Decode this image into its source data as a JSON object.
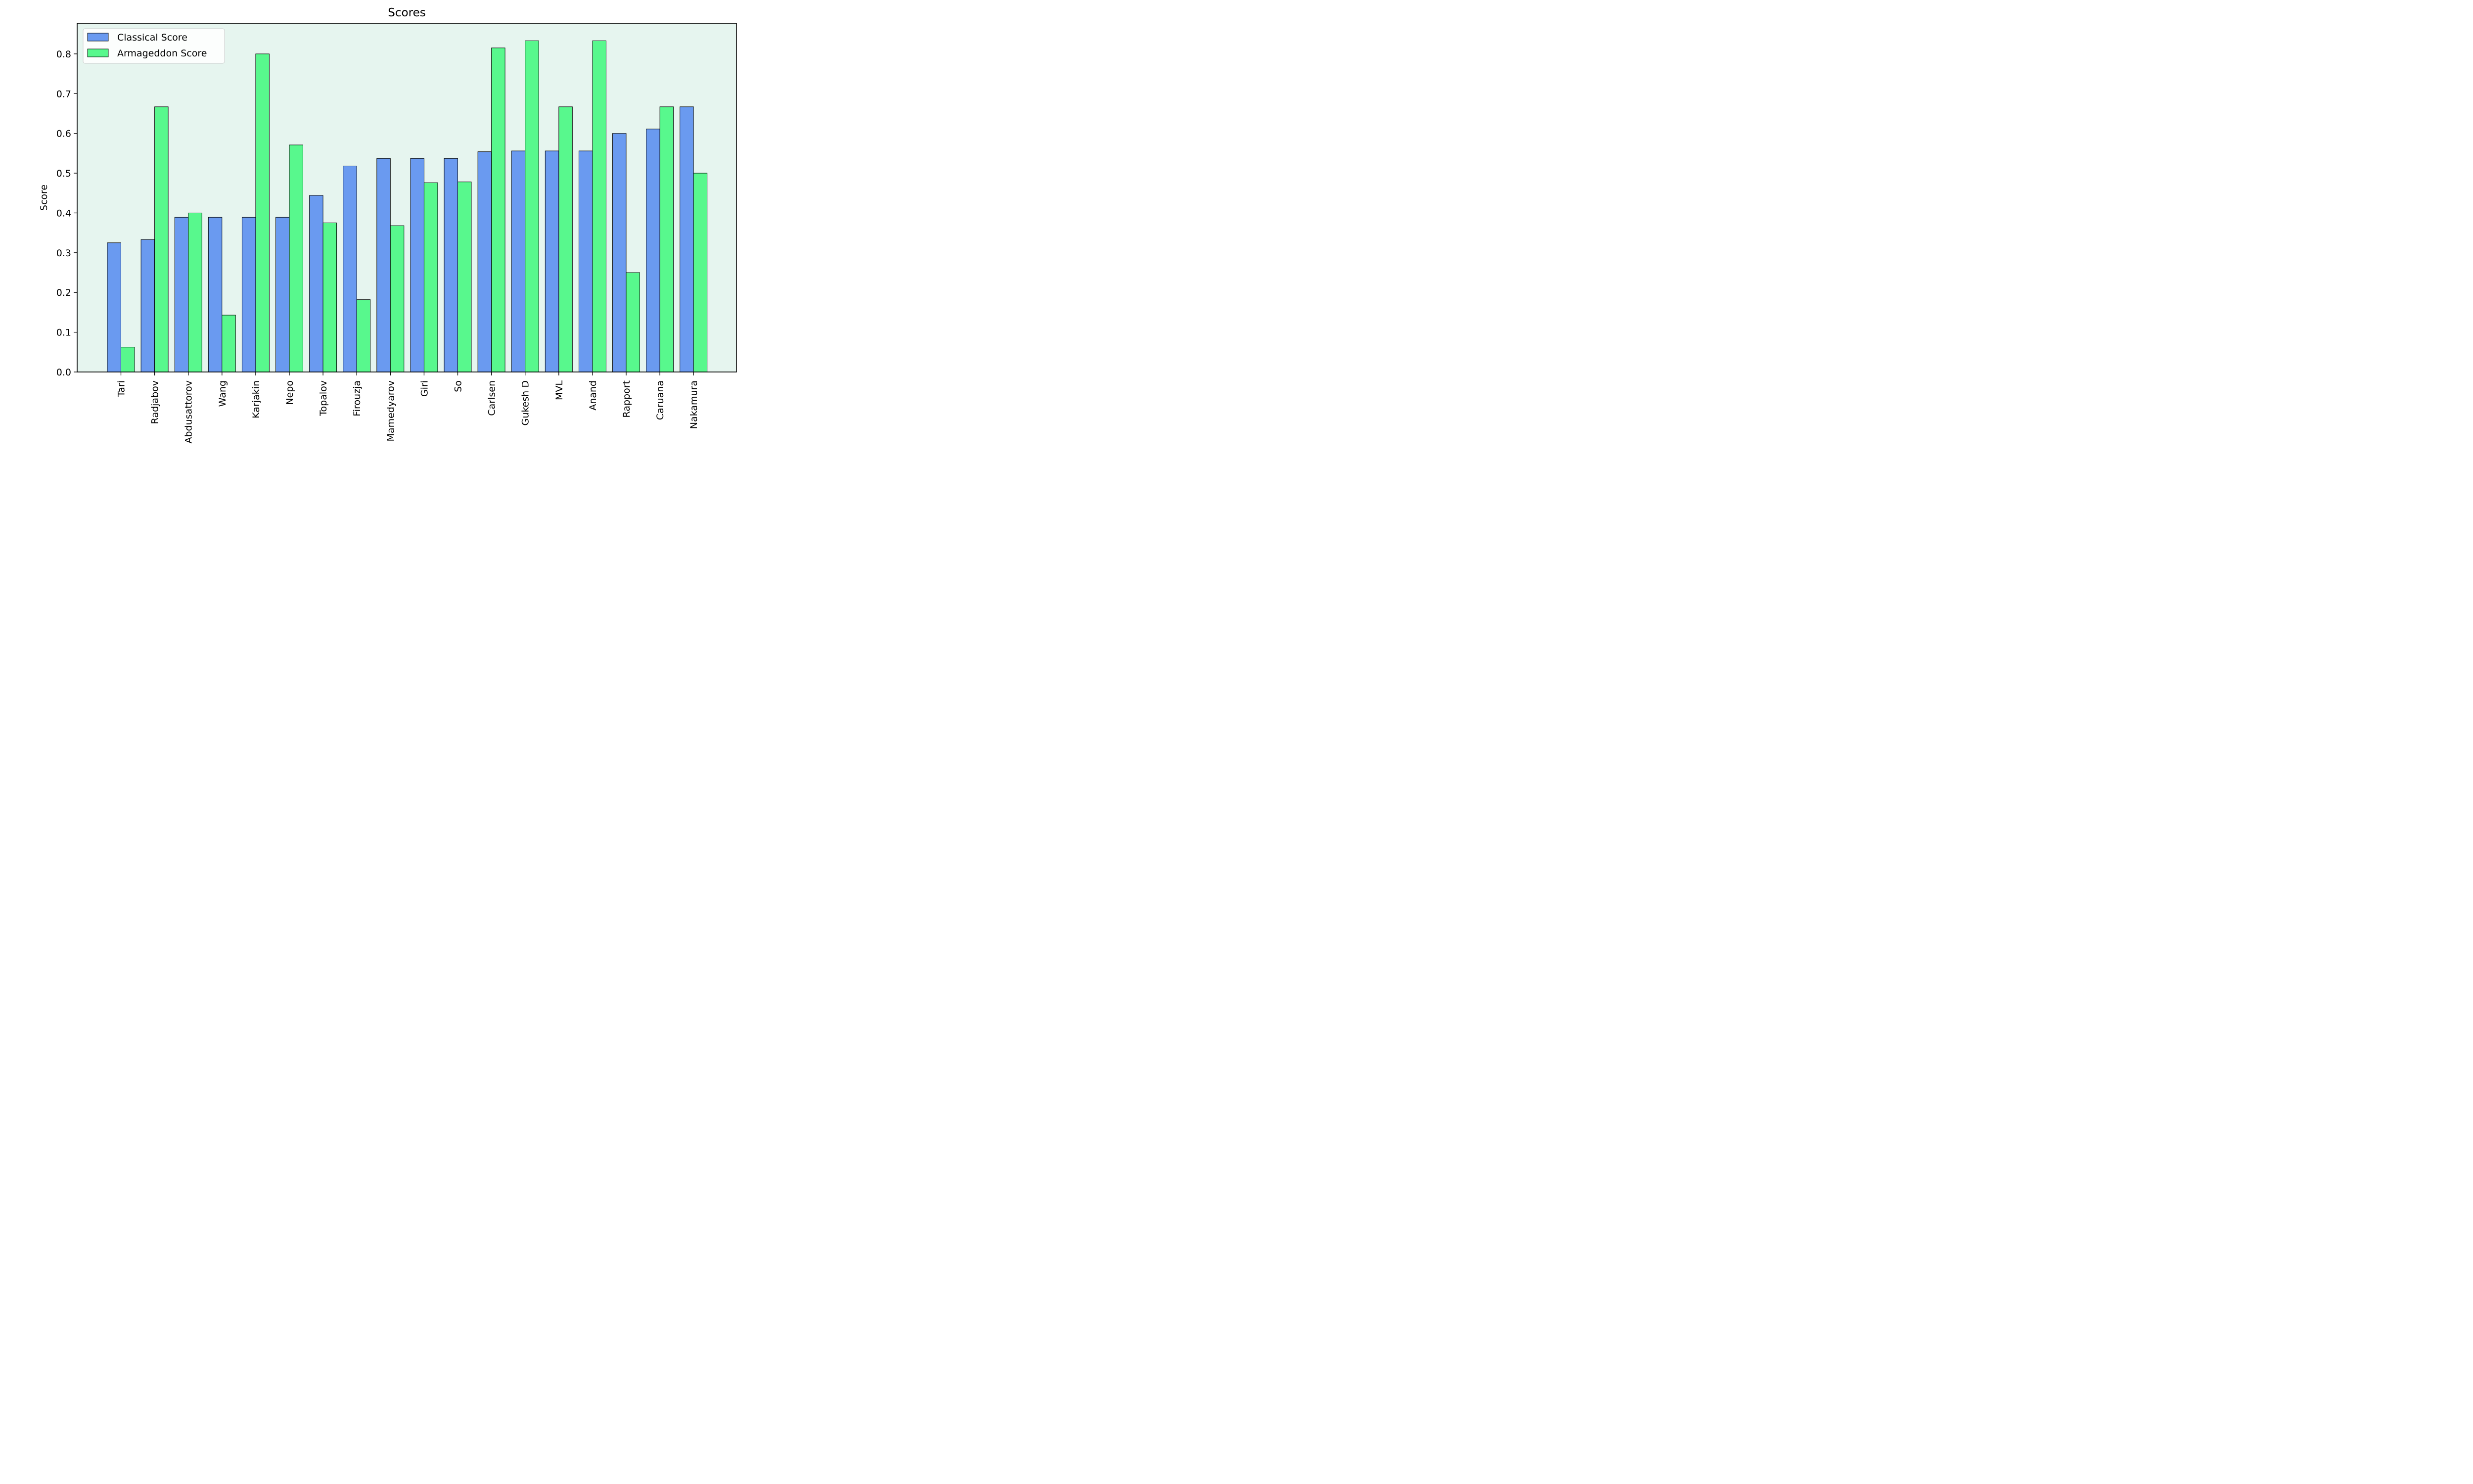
{
  "chart_data": {
    "type": "bar",
    "title": "Scores",
    "xlabel": "",
    "ylabel": "Score",
    "ylim": [
      0,
      0.877
    ],
    "yticks": [
      "0.0",
      "0.1",
      "0.2",
      "0.3",
      "0.4",
      "0.5",
      "0.6",
      "0.7",
      "0.8"
    ],
    "grid": false,
    "legend_position": "top-left",
    "plot_background": "#e6f5ef",
    "categories": [
      "Tari",
      "Radjabov",
      "Abdusattorov",
      "Wang",
      "Karjakin",
      "Nepo",
      "Topalov",
      "Firouzja",
      "Mamedyarov",
      "Giri",
      "So",
      "Carlsen",
      "Gukesh D",
      "MVL",
      "Anand",
      "Rapport",
      "Caruana",
      "Nakamura"
    ],
    "series": [
      {
        "name": "Classical Score",
        "color": "#6a9af0",
        "values": [
          0.325,
          0.333,
          0.389,
          0.389,
          0.389,
          0.389,
          0.444,
          0.518,
          0.537,
          0.537,
          0.537,
          0.554,
          0.556,
          0.556,
          0.556,
          0.6,
          0.611,
          0.667
        ]
      },
      {
        "name": "Armageddon Score",
        "color": "#58f88d",
        "values": [
          0.0625,
          0.667,
          0.4,
          0.143,
          0.8,
          0.571,
          0.375,
          0.182,
          0.368,
          0.476,
          0.478,
          0.815,
          0.833,
          0.667,
          0.833,
          0.25,
          0.667,
          0.5
        ]
      }
    ]
  }
}
